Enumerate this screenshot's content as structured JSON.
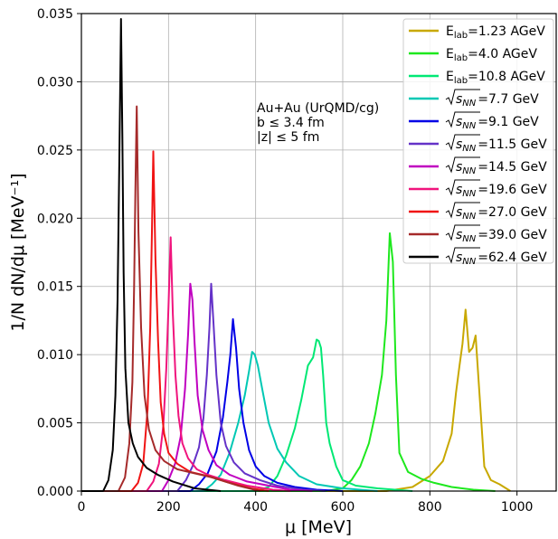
{
  "chart_data": {
    "type": "line",
    "xlabel": "μ [MeV]",
    "ylabel": "1/N dN/dμ [MeV⁻¹]",
    "xlim": [
      0,
      1090
    ],
    "ylim": [
      0,
      0.035
    ],
    "xticks": [
      0,
      200,
      400,
      600,
      800,
      1000
    ],
    "xtick_labels": [
      "0",
      "200",
      "400",
      "600",
      "800",
      "1000"
    ],
    "yticks": [
      0,
      0.005,
      0.01,
      0.015,
      0.02,
      0.025,
      0.03,
      0.035
    ],
    "ytick_labels": [
      "0.000",
      "0.005",
      "0.010",
      "0.015",
      "0.020",
      "0.025",
      "0.030",
      "0.035"
    ],
    "grid": true,
    "legend_position": "top-right",
    "annotation": [
      "Au+Au (UrQMD/cg)",
      "b ≤ 3.4 fm",
      "|z| ≤ 5 fm"
    ],
    "series": [
      {
        "name": "E_lab=1.23 AGeV",
        "color": "#c8a800",
        "x": [
          0,
          700,
          760,
          800,
          830,
          850,
          860,
          868,
          875,
          882,
          890,
          898,
          905,
          915,
          925,
          940,
          960,
          975,
          985
        ],
        "y": [
          0,
          0,
          0.0003,
          0.0011,
          0.0022,
          0.0042,
          0.0072,
          0.0092,
          0.0108,
          0.0133,
          0.0102,
          0.0105,
          0.0114,
          0.0066,
          0.0018,
          0.0008,
          0.0005,
          0.0002,
          0
        ]
      },
      {
        "name": "E_lab=4.0 AGeV",
        "color": "#1ee81e",
        "x": [
          0,
          560,
          600,
          620,
          640,
          660,
          675,
          690,
          700,
          708,
          715,
          722,
          730,
          750,
          780,
          810,
          850,
          900,
          950
        ],
        "y": [
          0,
          0,
          0.0002,
          0.0008,
          0.0018,
          0.0035,
          0.0057,
          0.0085,
          0.0125,
          0.0189,
          0.0168,
          0.0085,
          0.0028,
          0.0014,
          0.0009,
          0.0006,
          0.0003,
          0.0001,
          0
        ]
      },
      {
        "name": "E_lab=10.8 AGeV",
        "color": "#00e874",
        "x": [
          0,
          400,
          430,
          450,
          470,
          490,
          505,
          520,
          532,
          540,
          545,
          550,
          555,
          562,
          570,
          585,
          600,
          630,
          680,
          760
        ],
        "y": [
          0,
          0,
          0.0003,
          0.0011,
          0.0026,
          0.0046,
          0.0067,
          0.0092,
          0.0098,
          0.0111,
          0.011,
          0.0105,
          0.0085,
          0.005,
          0.0035,
          0.0018,
          0.0008,
          0.0004,
          0.0002,
          0
        ]
      },
      {
        "name": "√s_NN=7.7 GeV",
        "color": "#00c8b4",
        "x": [
          0,
          280,
          300,
          320,
          340,
          360,
          375,
          385,
          392,
          398,
          405,
          415,
          430,
          450,
          470,
          500,
          540,
          600,
          680
        ],
        "y": [
          0,
          0,
          0.0005,
          0.0012,
          0.0028,
          0.005,
          0.007,
          0.0088,
          0.0102,
          0.01,
          0.0092,
          0.0075,
          0.005,
          0.0031,
          0.0021,
          0.0011,
          0.0005,
          0.0002,
          0
        ]
      },
      {
        "name": "√s_NN=9.1 GeV",
        "color": "#0000e6",
        "x": [
          0,
          250,
          270,
          290,
          310,
          325,
          335,
          342,
          348,
          355,
          362,
          372,
          385,
          400,
          420,
          450,
          490,
          540,
          600
        ],
        "y": [
          0,
          0,
          0.0005,
          0.0013,
          0.0029,
          0.0054,
          0.008,
          0.01,
          0.0126,
          0.0105,
          0.0075,
          0.005,
          0.003,
          0.0018,
          0.0011,
          0.0006,
          0.0003,
          0.0001,
          0
        ]
      },
      {
        "name": "√s_NN=11.5 GeV",
        "color": "#6432c8",
        "x": [
          0,
          220,
          240,
          255,
          270,
          280,
          288,
          294,
          298,
          303,
          310,
          320,
          332,
          350,
          375,
          410,
          450,
          510,
          560
        ],
        "y": [
          0,
          0,
          0.0008,
          0.0018,
          0.0032,
          0.0053,
          0.0085,
          0.012,
          0.0152,
          0.0125,
          0.0085,
          0.005,
          0.0033,
          0.0021,
          0.0013,
          0.0008,
          0.0004,
          0.0001,
          0
        ]
      },
      {
        "name": "√s_NN=14.5 GeV",
        "color": "#c000c0",
        "x": [
          0,
          185,
          200,
          215,
          228,
          238,
          245,
          250,
          255,
          260,
          267,
          278,
          292,
          310,
          340,
          380,
          430,
          480,
          530
        ],
        "y": [
          0,
          0,
          0.0008,
          0.002,
          0.004,
          0.0075,
          0.0115,
          0.0152,
          0.014,
          0.0108,
          0.007,
          0.0045,
          0.003,
          0.0019,
          0.0012,
          0.0007,
          0.0004,
          0.0001,
          0
        ]
      },
      {
        "name": "√s_NN=19.6 GeV",
        "color": "#f0147d",
        "x": [
          0,
          150,
          165,
          178,
          188,
          195,
          200,
          205,
          210,
          216,
          223,
          232,
          245,
          265,
          290,
          330,
          380,
          440,
          480
        ],
        "y": [
          0,
          0,
          0.0007,
          0.002,
          0.0048,
          0.009,
          0.0135,
          0.0186,
          0.013,
          0.0085,
          0.0055,
          0.0035,
          0.0024,
          0.0016,
          0.0012,
          0.0008,
          0.0004,
          0.0001,
          0
        ]
      },
      {
        "name": "√s_NN=27.0 GeV",
        "color": "#f01414",
        "x": [
          0,
          115,
          130,
          142,
          152,
          158,
          162,
          165,
          170,
          176,
          182,
          190,
          200,
          220,
          250,
          290,
          340,
          390,
          430
        ],
        "y": [
          0,
          0,
          0.0006,
          0.002,
          0.006,
          0.012,
          0.019,
          0.0249,
          0.017,
          0.011,
          0.0065,
          0.0042,
          0.0028,
          0.002,
          0.0014,
          0.0011,
          0.0006,
          0.0002,
          0
        ]
      },
      {
        "name": "√s_NN=39.0 GeV",
        "color": "#a52a2a",
        "x": [
          0,
          85,
          100,
          110,
          117,
          121,
          124,
          127,
          131,
          137,
          145,
          155,
          170,
          190,
          220,
          260,
          300,
          360,
          410
        ],
        "y": [
          0,
          0,
          0.001,
          0.0035,
          0.008,
          0.015,
          0.022,
          0.0282,
          0.019,
          0.012,
          0.007,
          0.0045,
          0.003,
          0.0022,
          0.0016,
          0.0013,
          0.001,
          0.0004,
          0
        ]
      },
      {
        "name": "√s_NN=62.4 GeV",
        "color": "#000000",
        "x": [
          0,
          50,
          62,
          72,
          78,
          83,
          87,
          91,
          94,
          97,
          101,
          108,
          118,
          130,
          150,
          175,
          210,
          260,
          320
        ],
        "y": [
          0,
          0,
          0.0008,
          0.003,
          0.007,
          0.014,
          0.024,
          0.0346,
          0.026,
          0.016,
          0.009,
          0.005,
          0.0035,
          0.0025,
          0.0017,
          0.0012,
          0.0007,
          0.0002,
          0
        ]
      }
    ]
  },
  "legend": [
    {
      "pre": "E",
      "sub": "lab",
      "post": "=1.23 AGeV",
      "type": "elab"
    },
    {
      "pre": "E",
      "sub": "lab",
      "post": "=4.0 AGeV",
      "type": "elab"
    },
    {
      "pre": "E",
      "sub": "lab",
      "post": "=10.8 AGeV",
      "type": "elab"
    },
    {
      "pre": "s",
      "sub": "NN",
      "post": "=7.7 GeV",
      "type": "sqrt"
    },
    {
      "pre": "s",
      "sub": "NN",
      "post": "=9.1 GeV",
      "type": "sqrt"
    },
    {
      "pre": "s",
      "sub": "NN",
      "post": "=11.5 GeV",
      "type": "sqrt"
    },
    {
      "pre": "s",
      "sub": "NN",
      "post": "=14.5 GeV",
      "type": "sqrt"
    },
    {
      "pre": "s",
      "sub": "NN",
      "post": "=19.6 GeV",
      "type": "sqrt"
    },
    {
      "pre": "s",
      "sub": "NN",
      "post": "=27.0 GeV",
      "type": "sqrt"
    },
    {
      "pre": "s",
      "sub": "NN",
      "post": "=39.0 GeV",
      "type": "sqrt"
    },
    {
      "pre": "s",
      "sub": "NN",
      "post": "=62.4 GeV",
      "type": "sqrt"
    }
  ]
}
